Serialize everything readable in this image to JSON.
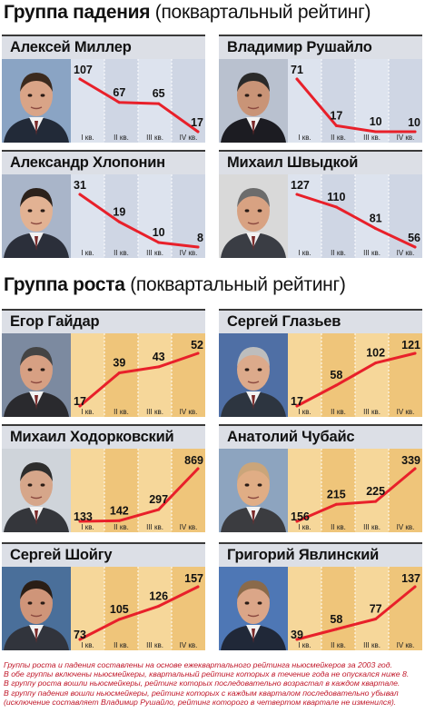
{
  "sections": [
    {
      "title": "Группа падения",
      "subtitle": "(поквартальный рейтинг)"
    },
    {
      "title": "Группа роста",
      "subtitle": "(поквартальный рейтинг)"
    }
  ],
  "colors": {
    "line": "#e8202a",
    "fall_panel": "#dde3ee",
    "fall_panel_alt": "#cfd6e4",
    "grow_panel": "#f6d79a",
    "grow_panel_alt": "#efc57a",
    "header_bg": "#dcdfe6"
  },
  "chart_data": [
    {
      "type": "line",
      "group": "Группа падения",
      "title": "Алексей Миллер",
      "categories": [
        "I кв.",
        "II кв.",
        "III кв.",
        "IV кв."
      ],
      "values": [
        107,
        67,
        65,
        17
      ],
      "photo": "portrait"
    },
    {
      "type": "line",
      "group": "Группа падения",
      "title": "Владимир Рушайло",
      "categories": [
        "I кв.",
        "II кв.",
        "III кв.",
        "IV кв."
      ],
      "values": [
        71,
        17,
        10,
        10
      ],
      "photo": "portrait"
    },
    {
      "type": "line",
      "group": "Группа падения",
      "title": "Александр Хлопонин",
      "categories": [
        "I кв.",
        "II кв.",
        "III кв.",
        "IV кв."
      ],
      "values": [
        31,
        19,
        10,
        8
      ],
      "photo": "portrait"
    },
    {
      "type": "line",
      "group": "Группа падения",
      "title": "Михаил Швыдкой",
      "categories": [
        "I кв.",
        "II кв.",
        "III кв.",
        "IV кв."
      ],
      "values": [
        127,
        110,
        81,
        56
      ],
      "photo": "portrait"
    },
    {
      "type": "line",
      "group": "Группа роста",
      "title": "Егор Гайдар",
      "categories": [
        "I кв.",
        "II кв.",
        "III кв.",
        "IV кв."
      ],
      "values": [
        17,
        39,
        43,
        52
      ],
      "photo": "portrait"
    },
    {
      "type": "line",
      "group": "Группа роста",
      "title": "Сергей Глазьев",
      "categories": [
        "I кв.",
        "II кв.",
        "III кв.",
        "IV кв."
      ],
      "values": [
        17,
        58,
        102,
        121
      ],
      "photo": "portrait"
    },
    {
      "type": "line",
      "group": "Группа роста",
      "title": "Михаил Ходорковский",
      "categories": [
        "I кв.",
        "II кв.",
        "III кв.",
        "IV кв."
      ],
      "values": [
        133,
        142,
        297,
        869
      ],
      "photo": "portrait"
    },
    {
      "type": "line",
      "group": "Группа роста",
      "title": "Анатолий Чубайс",
      "categories": [
        "I кв.",
        "II кв.",
        "III кв.",
        "IV кв."
      ],
      "values": [
        156,
        215,
        225,
        339
      ],
      "photo": "portrait"
    },
    {
      "type": "line",
      "group": "Группа роста",
      "title": "Сергей Шойгу",
      "categories": [
        "I кв.",
        "II кв.",
        "III кв.",
        "IV кв."
      ],
      "values": [
        73,
        105,
        126,
        157
      ],
      "photo": "portrait"
    },
    {
      "type": "line",
      "group": "Группа роста",
      "title": "Григорий Явлинский",
      "categories": [
        "I кв.",
        "II кв.",
        "III кв.",
        "IV кв."
      ],
      "values": [
        39,
        58,
        77,
        137
      ],
      "photo": "portrait"
    }
  ],
  "footnote": [
    "Группы роста и падения составлены на основе ежеквартального рейтинга ньюсмейкеров за 2003 год.",
    "В обе группы включены ньюсмейкеры, квартальный рейтинг которых в течение года не опускался ниже 8.",
    "В группу роста вошли ньюсмейкеры, рейтинг которых последовательно возрастал в каждом квартале.",
    "В группу падения вошли ньюсмейкеры, рейтинг которых с каждым кварталом последовательно убывал",
    "(исключение составляет Владимир Рушайло, рейтинг которого в четвертом квартале не изменился)."
  ]
}
